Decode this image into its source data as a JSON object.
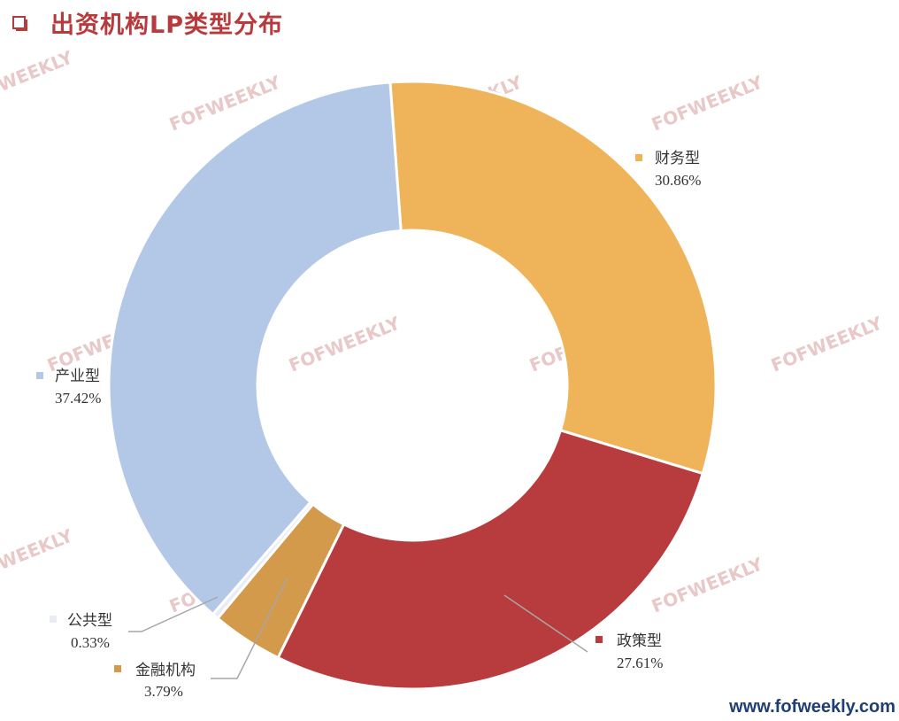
{
  "header": {
    "title": "出资机构LP类型分布"
  },
  "watermark": {
    "text": "FOFWEEKLY"
  },
  "footer": {
    "url": "www.fofweekly.com"
  },
  "chart_data": {
    "type": "pie",
    "variant": "donut",
    "title": "出资机构LP类型分布",
    "slices": [
      {
        "name": "财务型",
        "value": 30.86,
        "label": "30.86%",
        "color": "#efb45a"
      },
      {
        "name": "政策型",
        "value": 27.61,
        "label": "27.61%",
        "color": "#b83b3e"
      },
      {
        "name": "金融机构",
        "value": 3.79,
        "label": "3.79%",
        "color": "#d39a4c"
      },
      {
        "name": "公共型",
        "value": 0.33,
        "label": "0.33%",
        "color": "#e9ecf2"
      },
      {
        "name": "产业型",
        "value": 37.42,
        "label": "37.42%",
        "color": "#b3c8e6"
      }
    ]
  }
}
